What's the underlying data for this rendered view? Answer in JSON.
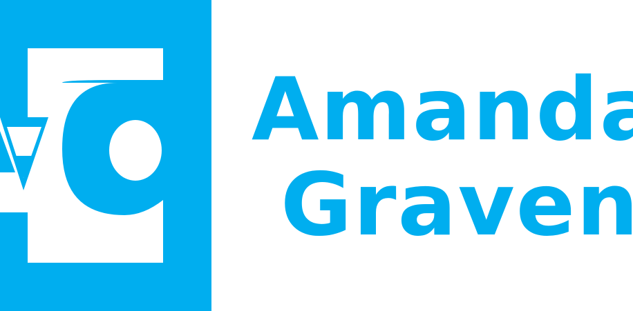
{
  "brand": {
    "name_line_1": "Amanda",
    "name_line_2": "Graven",
    "mark_icon": "ag-monogram-icon",
    "pencil_icon": "pencil-icon",
    "color": "#00aeef",
    "background": "#ffffff"
  }
}
